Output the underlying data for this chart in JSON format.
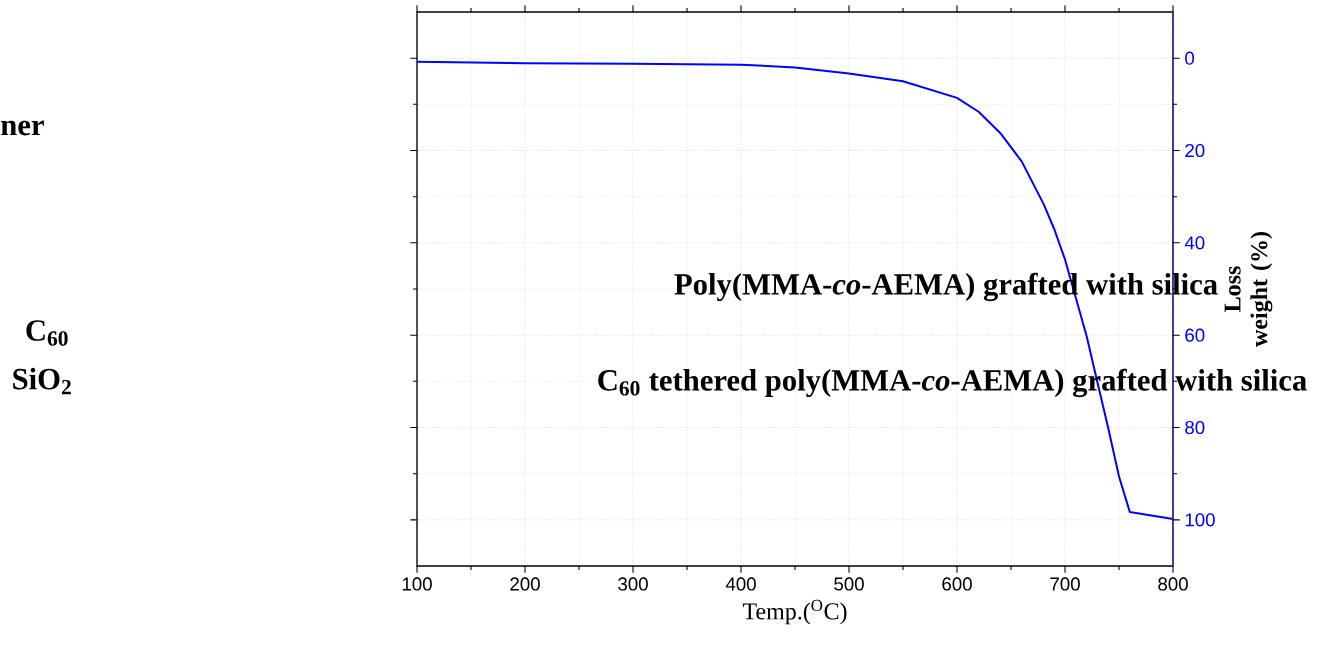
{
  "chart_data": {
    "type": "line",
    "xlabel": "Temp.($^{O}$C)",
    "ylabel": "Loss weight (%)",
    "xlim": [
      100,
      800
    ],
    "xticks": [
      100,
      200,
      300,
      400,
      500,
      600,
      700,
      800
    ],
    "ylim": [
      110,
      -10
    ],
    "yticks": [
      0,
      20,
      40,
      60,
      80,
      100
    ],
    "annotations": [
      "ner",
      "C$_{60}$",
      "SiO$_{2}$",
      "Poly(MMA-*co*-AEMA) grafted with silica",
      "C$_{60}$ tethered poly(MMA-*co*-AEMA) grafted with silica"
    ],
    "grid": true,
    "x": [
      100,
      200,
      300,
      400,
      450,
      500,
      550,
      600,
      620,
      640,
      660,
      680,
      690,
      700,
      710,
      720,
      730,
      740,
      750,
      760,
      800
    ],
    "series": [
      {
        "color": "#0000ff",
        "values": [
          0.8,
          1.1,
          1.2,
          1.4,
          2.0,
          3.3,
          5.0,
          8.6,
          11.6,
          16.2,
          22.4,
          31.5,
          37.0,
          43.6,
          51.9,
          60.2,
          70.2,
          80.1,
          90.6,
          98.3,
          99.8
        ]
      }
    ]
  }
}
